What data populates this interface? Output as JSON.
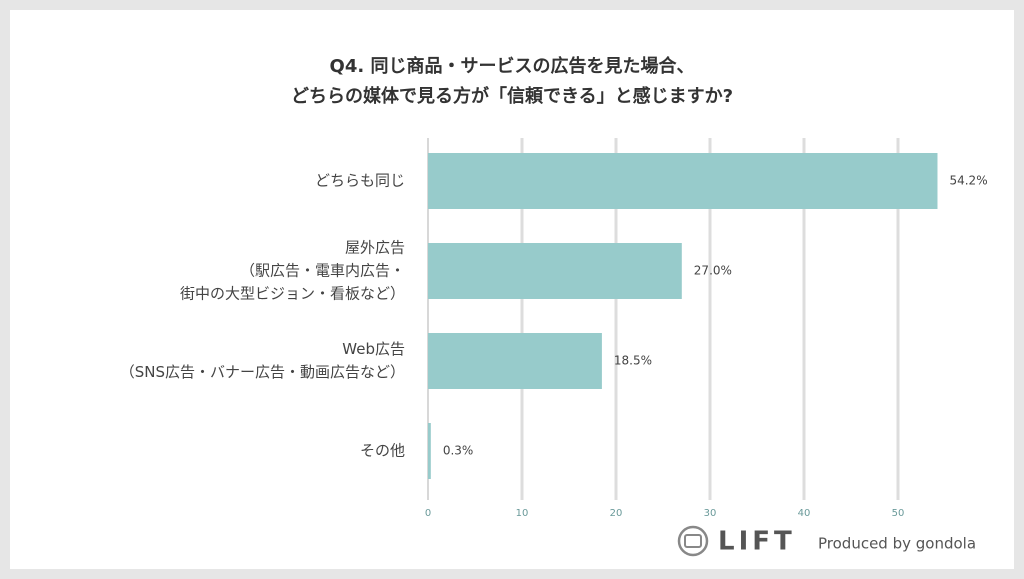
{
  "chart_data": {
    "type": "barh",
    "title": [
      "Q4. 同じ商品・サービスの広告を見た場合、",
      "どちらの媒体で見る方が「信頼できる」と感じますか?"
    ],
    "categories": [
      [
        "どちらも同じ"
      ],
      [
        "屋外広告",
        "（駅広告・電車内広告・",
        "街中の大型ビジョン・看板など）"
      ],
      [
        "Web広告",
        "（SNS広告・バナー広告・動画広告など）"
      ],
      [
        "その他"
      ]
    ],
    "values": [
      54.2,
      27.0,
      18.5,
      0.3
    ],
    "value_labels": [
      "54.2%",
      "27.0%",
      "18.5%",
      "0.3%"
    ],
    "color": "#97cbcb",
    "xlim": [
      0,
      55
    ],
    "xticks": [
      0,
      10,
      20,
      30,
      40,
      50
    ],
    "grid": true
  },
  "footer": {
    "logo": "LIFT",
    "credit": "Produced by gondola"
  }
}
